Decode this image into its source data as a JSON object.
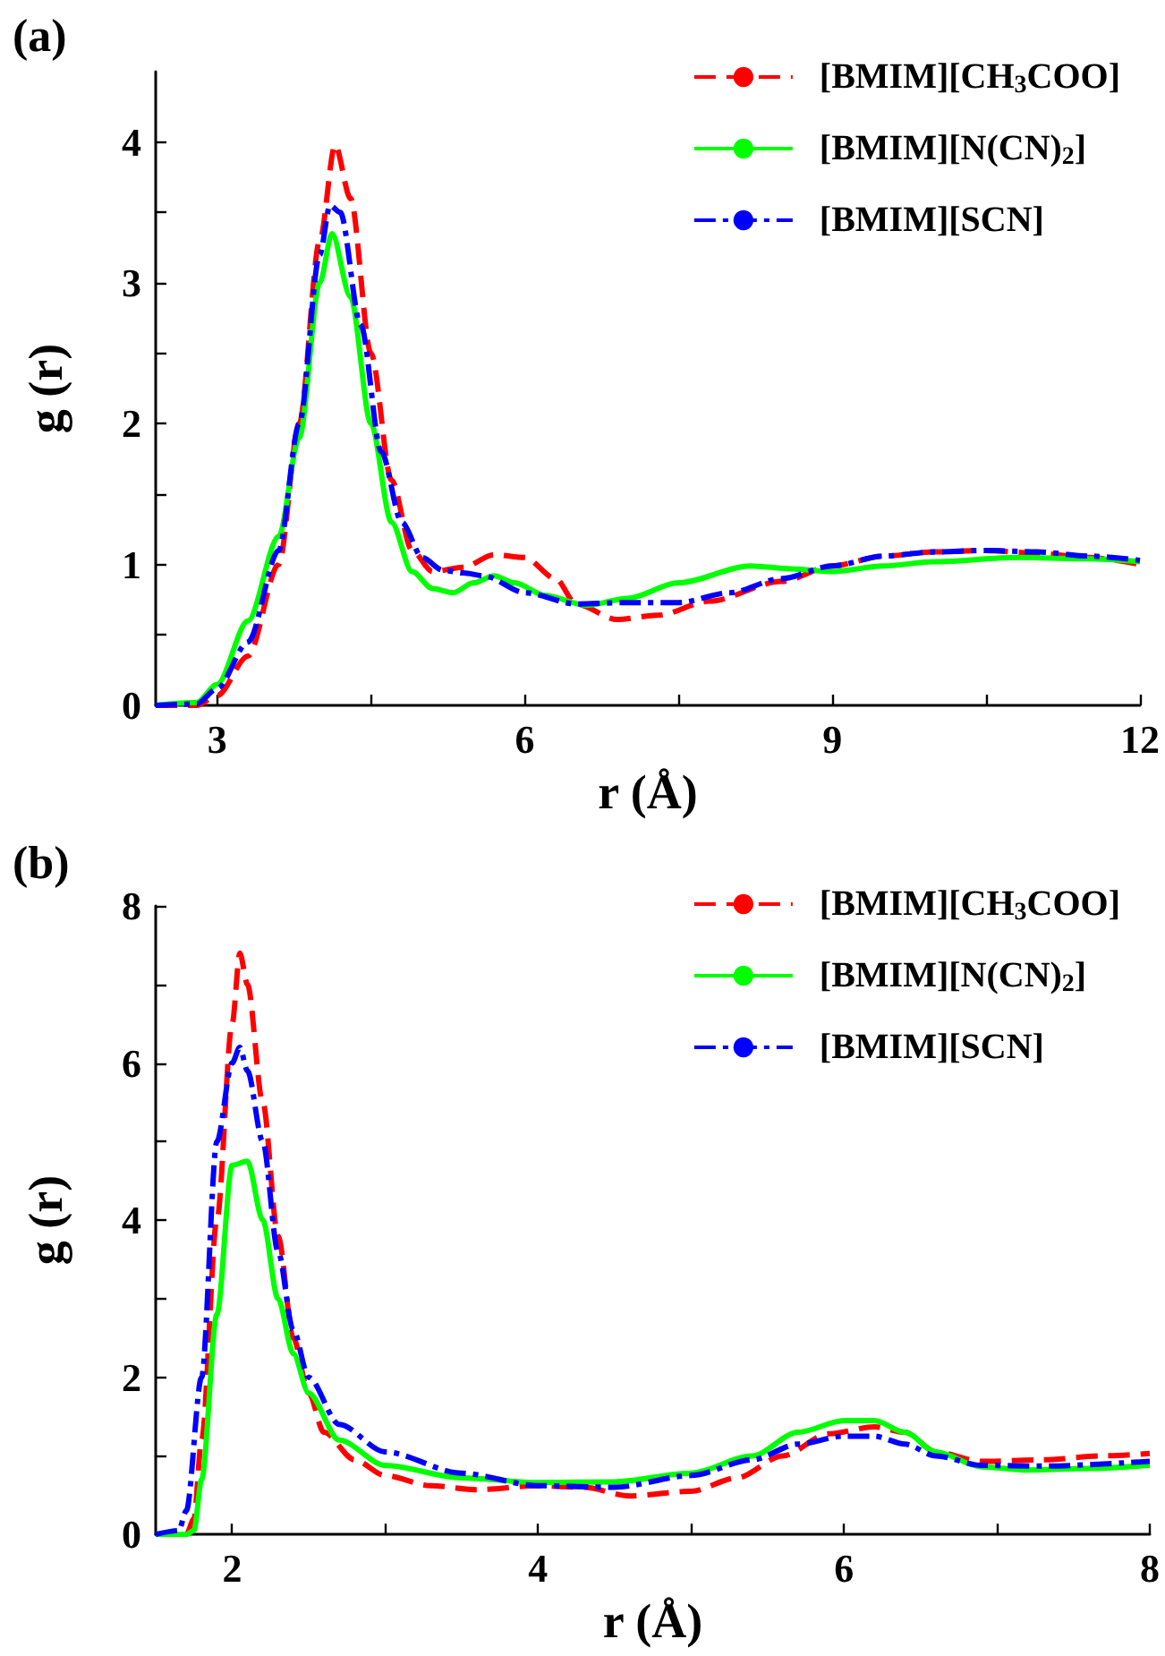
{
  "chart_data": [
    {
      "type": "line",
      "title": "(a)",
      "xlabel": "r (Å)",
      "ylabel": "g (r)",
      "xlim": [
        2.4,
        12
      ],
      "xticks": [
        3,
        {
          "value": 4.5,
          "label": null
        },
        6,
        {
          "value": 7.5,
          "label": null
        },
        9,
        {
          "value": 10.5,
          "label": null
        },
        12
      ],
      "ylim": [
        0,
        4.5
      ],
      "yticks": [
        0,
        {
          "value": 0.5,
          "label": null
        },
        1,
        {
          "value": 1.5,
          "label": null
        },
        2,
        {
          "value": 2.5,
          "label": null
        },
        3,
        {
          "value": 3.5,
          "label": null
        },
        4
      ],
      "grid": false,
      "legend": "top right",
      "marker": "none",
      "series": [
        {
          "name": "[BMIM][CH$_{3}$COO]",
          "color": "#ff0000",
          "line_style": "dashed",
          "x": [
            2.4,
            2.8,
            3.0,
            3.3,
            3.6,
            3.8,
            4.0,
            4.15,
            4.3,
            4.5,
            4.7,
            4.9,
            5.1,
            5.4,
            5.7,
            6.0,
            6.3,
            6.5,
            6.9,
            7.3,
            7.8,
            8.5,
            9.0,
            9.5,
            10.0,
            10.5,
            11.0,
            11.5,
            12
          ],
          "values": [
            0,
            0,
            0.07,
            0.35,
            1.0,
            2.0,
            3.3,
            3.98,
            3.6,
            2.5,
            1.6,
            1.1,
            0.95,
            0.98,
            1.07,
            1.05,
            0.9,
            0.72,
            0.61,
            0.64,
            0.74,
            0.88,
            0.99,
            1.06,
            1.09,
            1.1,
            1.08,
            1.05,
            1.0
          ]
        },
        {
          "name": "[BMIM][N(CN)$_{2}$]",
          "color": "#00ff00",
          "line_style": "solid",
          "x": [
            2.4,
            2.8,
            3.0,
            3.3,
            3.6,
            3.8,
            4.0,
            4.12,
            4.3,
            4.5,
            4.7,
            4.9,
            5.1,
            5.3,
            5.5,
            5.7,
            5.9,
            6.2,
            6.6,
            7.0,
            7.5,
            8.2,
            8.6,
            9.0,
            9.5,
            10.0,
            10.8,
            11.5,
            12
          ],
          "values": [
            0,
            0.02,
            0.15,
            0.6,
            1.2,
            1.9,
            3.0,
            3.35,
            2.9,
            2.0,
            1.3,
            0.95,
            0.83,
            0.8,
            0.87,
            0.92,
            0.87,
            0.78,
            0.71,
            0.76,
            0.87,
            0.99,
            0.97,
            0.95,
            0.99,
            1.02,
            1.05,
            1.04,
            1.02
          ]
        },
        {
          "name": "[BMIM][SCN]",
          "color": "#0000ff",
          "line_style": "dashdot",
          "x": [
            2.4,
            2.8,
            3.0,
            3.3,
            3.6,
            3.8,
            4.0,
            4.1,
            4.2,
            4.4,
            4.6,
            4.8,
            5.0,
            5.2,
            5.4,
            5.6,
            6.0,
            6.5,
            7.0,
            7.5,
            8.0,
            8.5,
            9.0,
            9.5,
            10.0,
            10.5,
            11.0,
            11.5,
            12
          ],
          "values": [
            0,
            0.01,
            0.12,
            0.45,
            1.1,
            2.0,
            3.2,
            3.55,
            3.5,
            2.7,
            1.8,
            1.3,
            1.05,
            0.96,
            0.94,
            0.92,
            0.8,
            0.72,
            0.73,
            0.73,
            0.8,
            0.9,
            0.99,
            1.06,
            1.09,
            1.1,
            1.09,
            1.06,
            1.03
          ]
        }
      ]
    },
    {
      "type": "line",
      "title": "(b)",
      "xlabel": "r (Å)",
      "ylabel": "g (r)",
      "xlim": [
        1.5,
        8
      ],
      "xticks": [
        2,
        {
          "value": 3,
          "label": null
        },
        4,
        {
          "value": 5,
          "label": null
        },
        6,
        {
          "value": 7,
          "label": null
        },
        8
      ],
      "ylim": [
        0,
        8
      ],
      "yticks": [
        0,
        {
          "value": 1,
          "label": null
        },
        2,
        {
          "value": 3,
          "label": null
        },
        4,
        {
          "value": 5,
          "label": null
        },
        6,
        {
          "value": 7,
          "label": null
        },
        8
      ],
      "grid": false,
      "legend": "top right",
      "marker": "none",
      "series": [
        {
          "name": "[BMIM][CH$_{3}$COO]",
          "color": "#ff0000",
          "line_style": "dashed",
          "x": [
            1.5,
            1.7,
            1.75,
            1.8,
            1.9,
            2.0,
            2.05,
            2.1,
            2.2,
            2.3,
            2.4,
            2.5,
            2.6,
            2.8,
            3.0,
            3.3,
            3.6,
            4.0,
            4.3,
            4.6,
            5.0,
            5.3,
            5.6,
            5.9,
            6.2,
            6.4,
            6.6,
            6.9,
            7.3,
            7.7,
            8
          ],
          "values": [
            0,
            0,
            0.2,
            1.2,
            4.0,
            6.5,
            7.4,
            7.0,
            5.5,
            3.8,
            2.5,
            1.8,
            1.3,
            0.95,
            0.75,
            0.62,
            0.57,
            0.62,
            0.6,
            0.49,
            0.55,
            0.72,
            1.0,
            1.28,
            1.37,
            1.3,
            1.05,
            0.93,
            0.95,
            1.0,
            1.03
          ]
        },
        {
          "name": "[BMIM][N(CN)$_{2}$]",
          "color": "#00ff00",
          "line_style": "solid",
          "x": [
            1.5,
            1.7,
            1.75,
            1.8,
            1.9,
            2.0,
            2.1,
            2.2,
            2.3,
            2.4,
            2.5,
            2.7,
            3.0,
            3.5,
            4.0,
            4.5,
            5.0,
            5.4,
            5.7,
            6.0,
            6.2,
            6.4,
            6.6,
            6.9,
            7.2,
            7.6,
            8
          ],
          "values": [
            0,
            0,
            0.05,
            0.7,
            2.8,
            4.7,
            4.75,
            4.0,
            3.0,
            2.3,
            1.8,
            1.2,
            0.88,
            0.72,
            0.66,
            0.67,
            0.78,
            1.0,
            1.3,
            1.45,
            1.45,
            1.3,
            1.05,
            0.86,
            0.82,
            0.84,
            0.88
          ]
        },
        {
          "name": "[BMIM][SCN]",
          "color": "#0000ff",
          "line_style": "dashdot",
          "x": [
            1.5,
            1.65,
            1.7,
            1.8,
            1.9,
            2.0,
            2.05,
            2.1,
            2.2,
            2.3,
            2.4,
            2.5,
            2.7,
            3.0,
            3.5,
            4.0,
            4.5,
            5.0,
            5.4,
            5.7,
            6.0,
            6.2,
            6.4,
            6.6,
            6.9,
            7.3,
            8
          ],
          "values": [
            0,
            0.05,
            0.3,
            2.0,
            5.0,
            6.0,
            6.2,
            5.9,
            5.0,
            3.6,
            2.6,
            2.0,
            1.4,
            1.05,
            0.78,
            0.62,
            0.6,
            0.75,
            0.95,
            1.15,
            1.25,
            1.25,
            1.15,
            1.0,
            0.88,
            0.87,
            0.93
          ]
        }
      ]
    }
  ]
}
